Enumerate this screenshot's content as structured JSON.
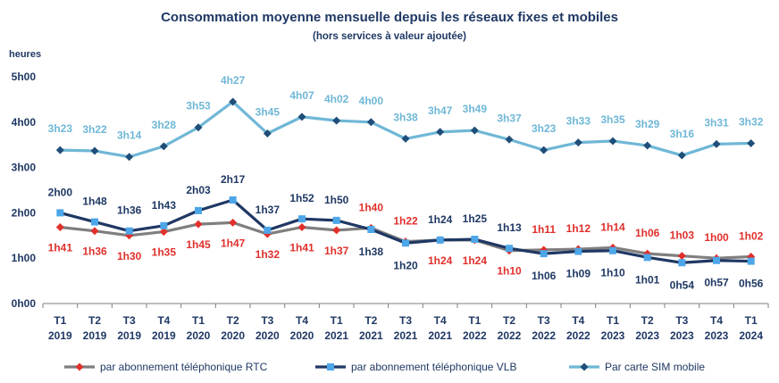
{
  "chart_data": {
    "type": "line",
    "title": "Consommation moyenne mensuelle depuis les réseaux fixes et mobiles",
    "subtitle": "(hors services à valeur ajoutée)",
    "ylabel": "heures",
    "y_unit": "minutes",
    "ylim": [
      0,
      300
    ],
    "y_ticks": [
      {
        "value": 0,
        "label": "0h00"
      },
      {
        "value": 60,
        "label": "1h00"
      },
      {
        "value": 120,
        "label": "2h00"
      },
      {
        "value": 180,
        "label": "3h00"
      },
      {
        "value": 240,
        "label": "4h00"
      },
      {
        "value": 300,
        "label": "5h00"
      }
    ],
    "categories": [
      [
        "T1",
        "2019"
      ],
      [
        "T2",
        "2019"
      ],
      [
        "T3",
        "2019"
      ],
      [
        "T4",
        "2019"
      ],
      [
        "T1",
        "2020"
      ],
      [
        "T2",
        "2020"
      ],
      [
        "T3",
        "2020"
      ],
      [
        "T4",
        "2020"
      ],
      [
        "T1",
        "2021"
      ],
      [
        "T2",
        "2021"
      ],
      [
        "T3",
        "2021"
      ],
      [
        "T4",
        "2021"
      ],
      [
        "T1",
        "2022"
      ],
      [
        "T2",
        "2022"
      ],
      [
        "T3",
        "2022"
      ],
      [
        "T4",
        "2022"
      ],
      [
        "T1",
        "2023"
      ],
      [
        "T2",
        "2023"
      ],
      [
        "T3",
        "2023"
      ],
      [
        "T4",
        "2023"
      ],
      [
        "T1",
        "2024"
      ]
    ],
    "legend_position": "bottom",
    "series": [
      {
        "name": "par abonnement téléphonique RTC",
        "color": "#7f7f7f",
        "marker_color": "#e0302b",
        "label_color": "#e0302b",
        "marker": "diamond",
        "values": [
          101,
          96,
          90,
          95,
          105,
          107,
          92,
          101,
          97,
          100,
          82,
          84,
          84,
          70,
          71,
          72,
          74,
          66,
          63,
          60,
          62
        ],
        "labels": [
          "1h41",
          "1h36",
          "1h30",
          "1h35",
          "1h45",
          "1h47",
          "1h32",
          "1h41",
          "1h37",
          "1h40",
          "1h22",
          "1h24",
          "1h24",
          "1h10",
          "1h11",
          "1h12",
          "1h14",
          "1h06",
          "1h03",
          "1h00",
          "1h02"
        ]
      },
      {
        "name": "par abonnement téléphonique VLB",
        "color": "#1f3864",
        "marker_color": "#4ca6e8",
        "label_color": "#1f3864",
        "marker": "square",
        "values": [
          120,
          108,
          96,
          103,
          123,
          137,
          97,
          112,
          110,
          98,
          80,
          84,
          85,
          73,
          66,
          69,
          70,
          61,
          54,
          57,
          56
        ],
        "labels": [
          "2h00",
          "1h48",
          "1h36",
          "1h43",
          "2h03",
          "2h17",
          "1h37",
          "1h52",
          "1h50",
          "1h38",
          "1h20",
          "1h24",
          "1h25",
          "1h13",
          "1h06",
          "1h09",
          "1h10",
          "1h01",
          "0h54",
          "0h57",
          "0h56"
        ]
      },
      {
        "name": "Par carte SIM mobile",
        "color": "#6fb7d6",
        "marker_color": "#1f4e79",
        "label_color": "#6fb7d6",
        "marker": "diamond",
        "values": [
          203,
          202,
          194,
          208,
          233,
          267,
          225,
          247,
          242,
          240,
          218,
          227,
          229,
          217,
          203,
          213,
          215,
          209,
          196,
          211,
          212
        ],
        "labels": [
          "3h23",
          "3h22",
          "3h14",
          "3h28",
          "3h53",
          "4h27",
          "3h45",
          "4h07",
          "4h02",
          "4h00",
          "3h38",
          "3h47",
          "3h49",
          "3h37",
          "3h23",
          "3h33",
          "3h35",
          "3h29",
          "3h16",
          "3h31",
          "3h32"
        ]
      }
    ]
  }
}
